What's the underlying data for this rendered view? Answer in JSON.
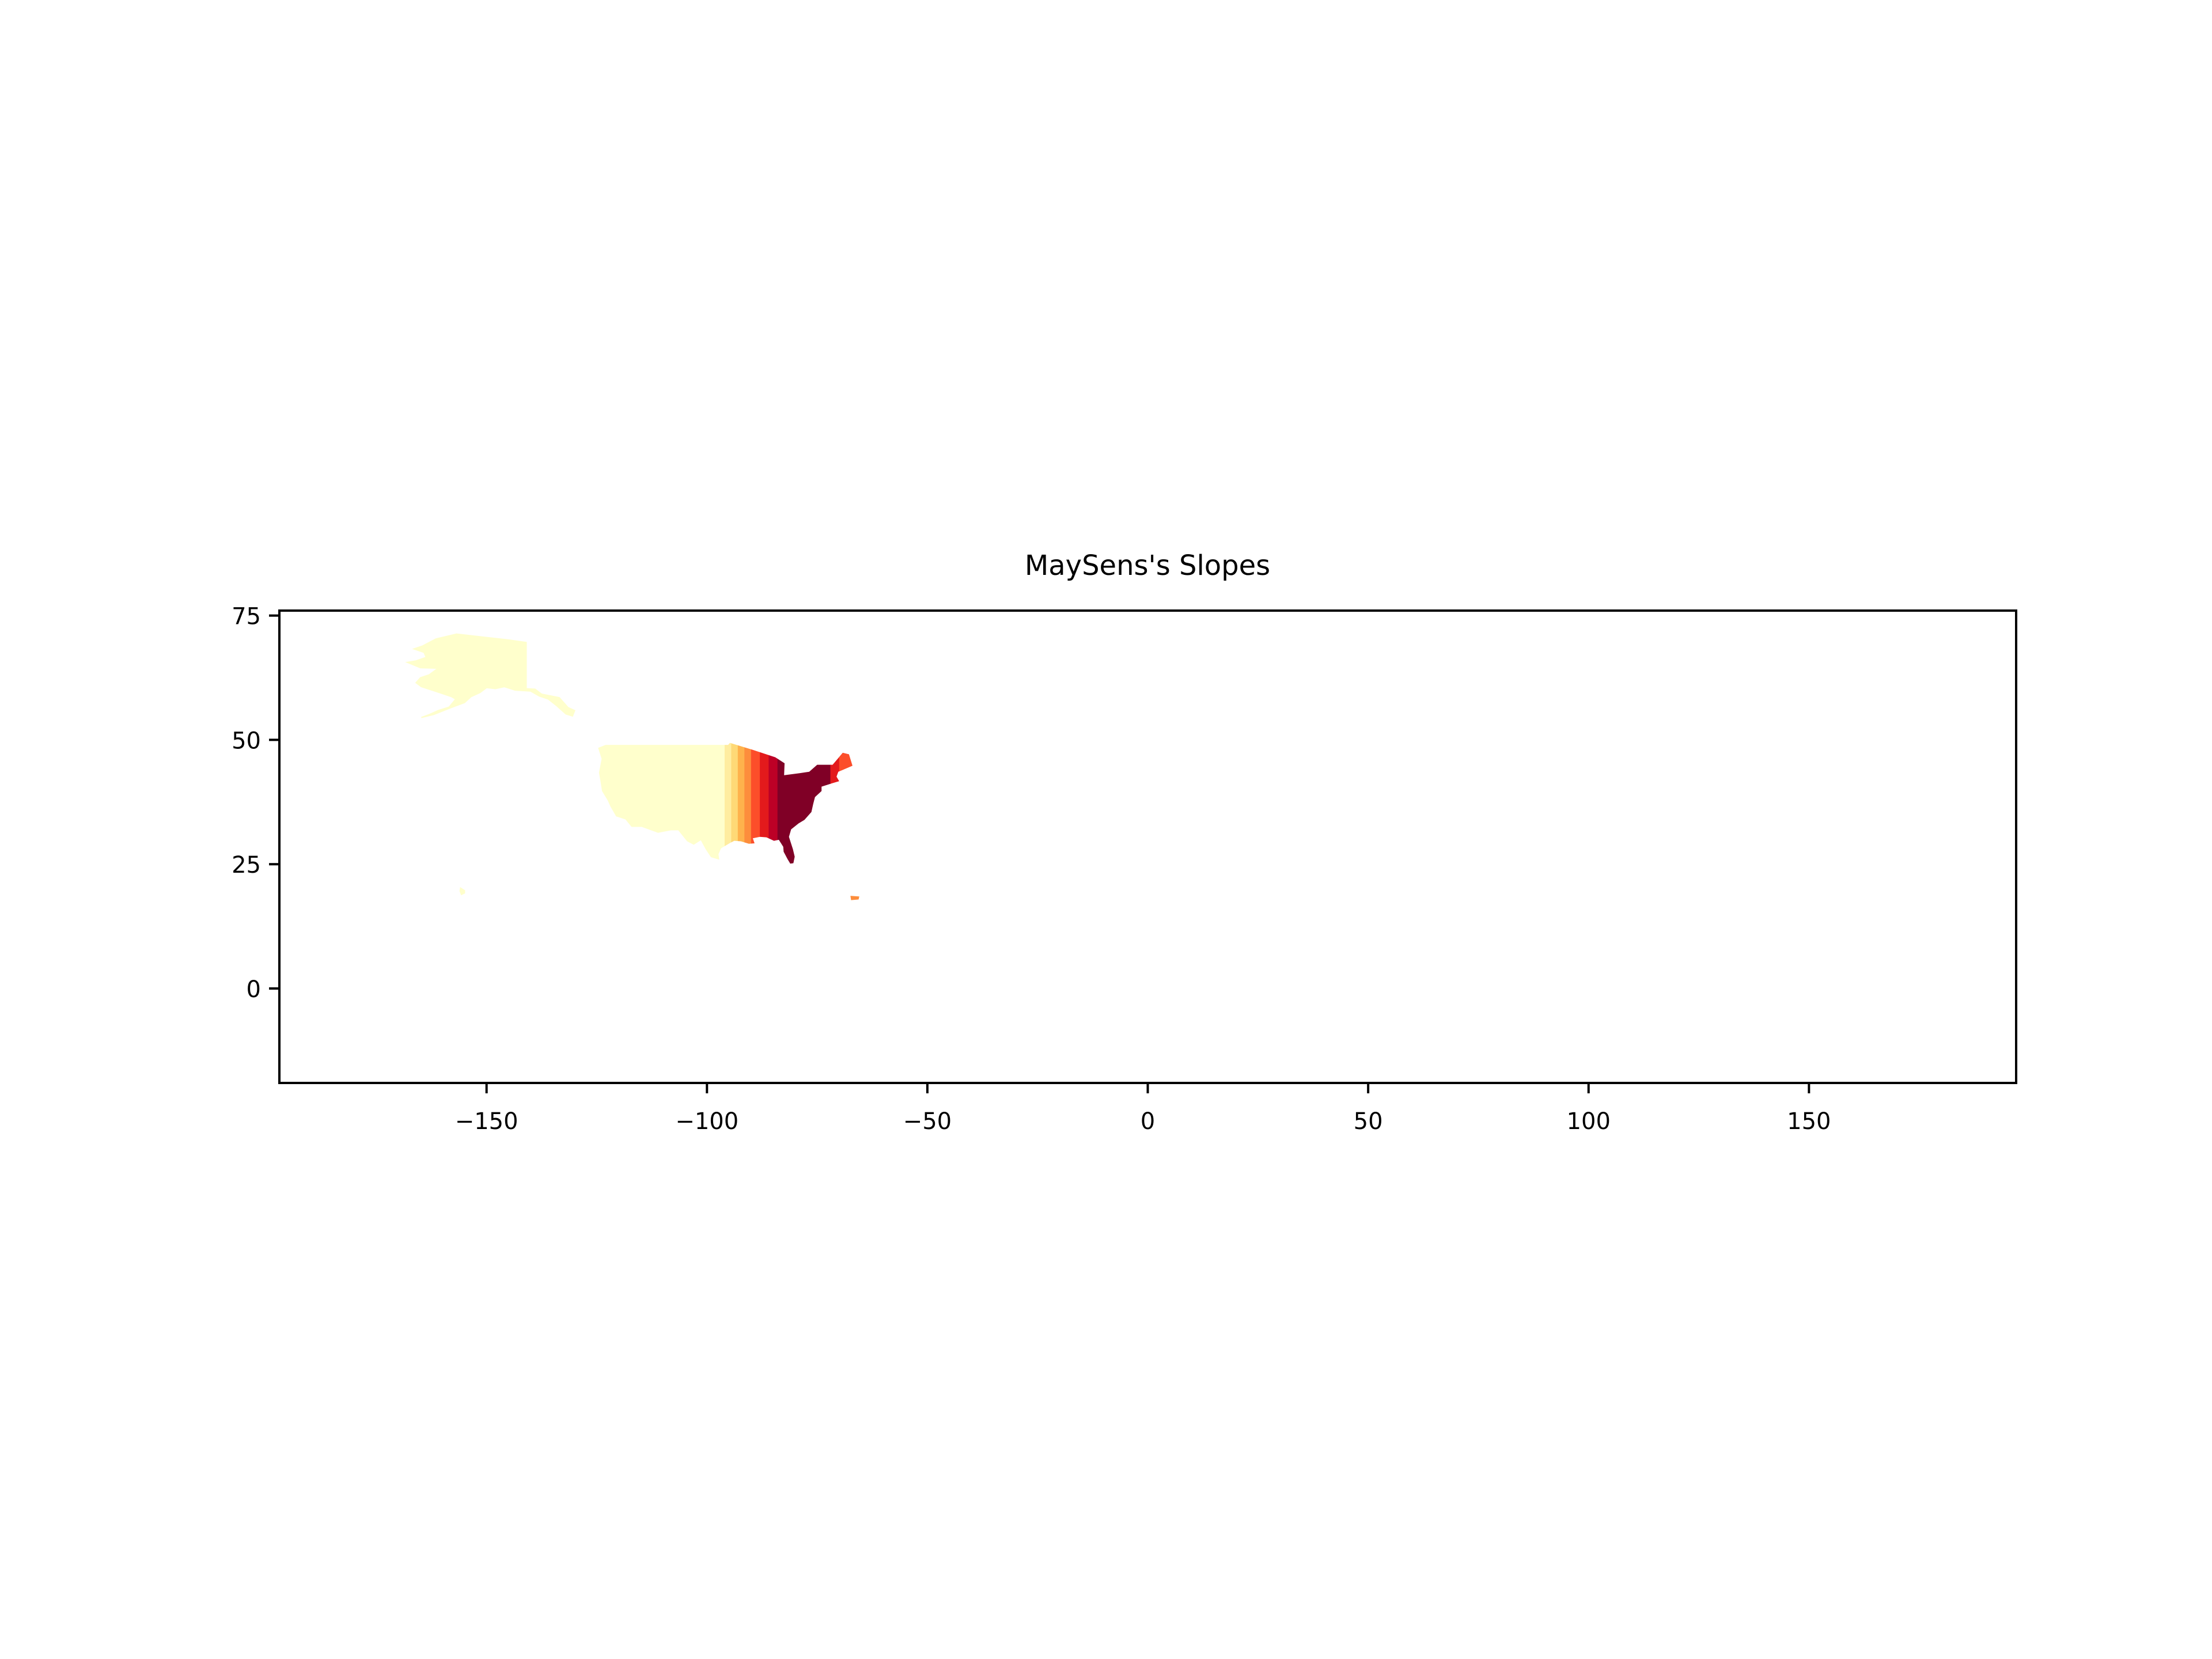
{
  "chart_data": {
    "type": "choropleth-contour",
    "title": "MaySens's Slopes",
    "xlabel": "",
    "ylabel": "",
    "xlim": [
      -197,
      197
    ],
    "ylim": [
      -19,
      76
    ],
    "x_ticks": [
      -150,
      -100,
      -50,
      0,
      50,
      100,
      150
    ],
    "y_ticks": [
      0,
      25,
      50,
      75
    ],
    "x_tick_labels": [
      "−150",
      "−100",
      "−50",
      "0",
      "50",
      "100",
      "150"
    ],
    "y_tick_labels": [
      "0",
      "25",
      "50",
      "75"
    ],
    "grid": false,
    "legend": "none",
    "colormap": "YlOrRd",
    "palette": [
      "#ffffcc",
      "#ffeda0",
      "#fed976",
      "#feb24c",
      "#fd8d3c",
      "#fc4e2a",
      "#e31a1c",
      "#bd0026",
      "#800026"
    ],
    "bands": [
      {
        "lon_from": -125,
        "lon_to": -96,
        "color": "#ffffcc"
      },
      {
        "lon_from": -96,
        "lon_to": -94.5,
        "color": "#ffeda0"
      },
      {
        "lon_from": -94.5,
        "lon_to": -93,
        "color": "#fed976"
      },
      {
        "lon_from": -93,
        "lon_to": -91.5,
        "color": "#feb24c"
      },
      {
        "lon_from": -91.5,
        "lon_to": -90,
        "color": "#fd8d3c"
      },
      {
        "lon_from": -90,
        "lon_to": -88,
        "color": "#fc4e2a"
      },
      {
        "lon_from": -88,
        "lon_to": -86,
        "color": "#e31a1c"
      },
      {
        "lon_from": -86,
        "lon_to": -84,
        "color": "#bd0026"
      },
      {
        "lon_from": -84,
        "lon_to": -72,
        "color": "#800026"
      },
      {
        "lon_from": -72,
        "lon_to": -66,
        "color": "#e31a1c"
      },
      {
        "lon_from": -70,
        "lon_to": -66,
        "color": "#fc4e2a"
      }
    ],
    "regions": [
      {
        "name": "contiguous-us",
        "polygon": [
          [
            -124.7,
            48.4
          ],
          [
            -123.0,
            49.0
          ],
          [
            -95.2,
            49.0
          ],
          [
            -94.8,
            49.4
          ],
          [
            -89.6,
            48.0
          ],
          [
            -84.5,
            46.5
          ],
          [
            -82.4,
            45.3
          ],
          [
            -82.5,
            42.9
          ],
          [
            -79.0,
            43.3
          ],
          [
            -76.8,
            43.6
          ],
          [
            -75.0,
            45.0
          ],
          [
            -71.5,
            45.0
          ],
          [
            -69.2,
            47.4
          ],
          [
            -67.8,
            47.1
          ],
          [
            -67.0,
            44.8
          ],
          [
            -70.2,
            43.6
          ],
          [
            -70.6,
            42.6
          ],
          [
            -70.0,
            41.7
          ],
          [
            -71.5,
            41.3
          ],
          [
            -74.0,
            40.6
          ],
          [
            -74.0,
            39.7
          ],
          [
            -75.5,
            38.5
          ],
          [
            -75.9,
            37.1
          ],
          [
            -76.3,
            35.5
          ],
          [
            -77.9,
            33.9
          ],
          [
            -79.2,
            33.2
          ],
          [
            -80.9,
            32.0
          ],
          [
            -81.4,
            30.5
          ],
          [
            -80.5,
            28.0
          ],
          [
            -80.1,
            26.5
          ],
          [
            -80.4,
            25.2
          ],
          [
            -81.1,
            25.1
          ],
          [
            -81.7,
            26.0
          ],
          [
            -82.6,
            27.5
          ],
          [
            -82.7,
            28.5
          ],
          [
            -83.7,
            29.9
          ],
          [
            -84.8,
            29.7
          ],
          [
            -86.5,
            30.4
          ],
          [
            -88.0,
            30.5
          ],
          [
            -89.6,
            30.2
          ],
          [
            -89.2,
            29.2
          ],
          [
            -90.5,
            29.1
          ],
          [
            -92.3,
            29.6
          ],
          [
            -93.8,
            29.7
          ],
          [
            -94.7,
            29.3
          ],
          [
            -96.8,
            28.2
          ],
          [
            -97.4,
            27.0
          ],
          [
            -97.2,
            25.9
          ],
          [
            -99.1,
            26.4
          ],
          [
            -100.3,
            28.0
          ],
          [
            -101.4,
            29.8
          ],
          [
            -103.0,
            28.9
          ],
          [
            -104.5,
            29.6
          ],
          [
            -106.5,
            31.8
          ],
          [
            -108.2,
            31.8
          ],
          [
            -111.1,
            31.3
          ],
          [
            -114.8,
            32.5
          ],
          [
            -117.1,
            32.5
          ],
          [
            -118.5,
            34.0
          ],
          [
            -120.6,
            34.6
          ],
          [
            -121.9,
            36.6
          ],
          [
            -122.5,
            37.8
          ],
          [
            -123.8,
            39.7
          ],
          [
            -124.2,
            41.9
          ],
          [
            -124.5,
            43.4
          ],
          [
            -123.9,
            46.2
          ],
          [
            -124.7,
            48.4
          ]
        ]
      },
      {
        "name": "alaska",
        "polygon": [
          [
            -141.0,
            69.6
          ],
          [
            -145.0,
            70.1
          ],
          [
            -152.0,
            70.8
          ],
          [
            -156.8,
            71.3
          ],
          [
            -161.5,
            70.3
          ],
          [
            -164.5,
            68.9
          ],
          [
            -166.5,
            68.3
          ],
          [
            -164.2,
            67.6
          ],
          [
            -163.7,
            66.6
          ],
          [
            -166.0,
            65.9
          ],
          [
            -168.0,
            65.6
          ],
          [
            -165.0,
            64.5
          ],
          [
            -161.0,
            64.4
          ],
          [
            -163.0,
            63.1
          ],
          [
            -165.0,
            62.5
          ],
          [
            -166.0,
            61.5
          ],
          [
            -164.8,
            60.7
          ],
          [
            -162.0,
            59.9
          ],
          [
            -158.0,
            58.7
          ],
          [
            -157.0,
            58.2
          ],
          [
            -158.5,
            56.6
          ],
          [
            -161.0,
            55.9
          ],
          [
            -163.0,
            55.1
          ],
          [
            -164.8,
            54.5
          ],
          [
            -162.0,
            55.1
          ],
          [
            -158.0,
            56.5
          ],
          [
            -155.0,
            57.5
          ],
          [
            -153.5,
            58.7
          ],
          [
            -151.5,
            59.5
          ],
          [
            -150.0,
            60.5
          ],
          [
            -148.0,
            60.3
          ],
          [
            -146.0,
            60.7
          ],
          [
            -143.5,
            60.0
          ],
          [
            -140.0,
            59.8
          ],
          [
            -138.0,
            58.8
          ],
          [
            -136.0,
            58.2
          ],
          [
            -134.0,
            56.8
          ],
          [
            -132.0,
            55.2
          ],
          [
            -130.5,
            54.8
          ],
          [
            -130.0,
            55.9
          ],
          [
            -131.5,
            56.5
          ],
          [
            -133.5,
            58.5
          ],
          [
            -137.5,
            59.2
          ],
          [
            -139.0,
            60.2
          ],
          [
            -141.0,
            60.3
          ],
          [
            -141.0,
            69.6
          ]
        ],
        "color": "#ffffcc"
      },
      {
        "name": "hawaii",
        "polygon": [
          [
            -155.9,
            20.2
          ],
          [
            -155.0,
            19.7
          ],
          [
            -155.0,
            19.2
          ],
          [
            -155.7,
            18.9
          ],
          [
            -156.0,
            19.6
          ],
          [
            -155.9,
            20.2
          ]
        ],
        "color": "#ffffcc"
      },
      {
        "name": "puerto-rico",
        "polygon": [
          [
            -67.3,
            18.5
          ],
          [
            -65.6,
            18.4
          ],
          [
            -65.7,
            18.0
          ],
          [
            -67.2,
            17.9
          ],
          [
            -67.3,
            18.5
          ]
        ],
        "color": "#fd8d3c"
      }
    ]
  }
}
